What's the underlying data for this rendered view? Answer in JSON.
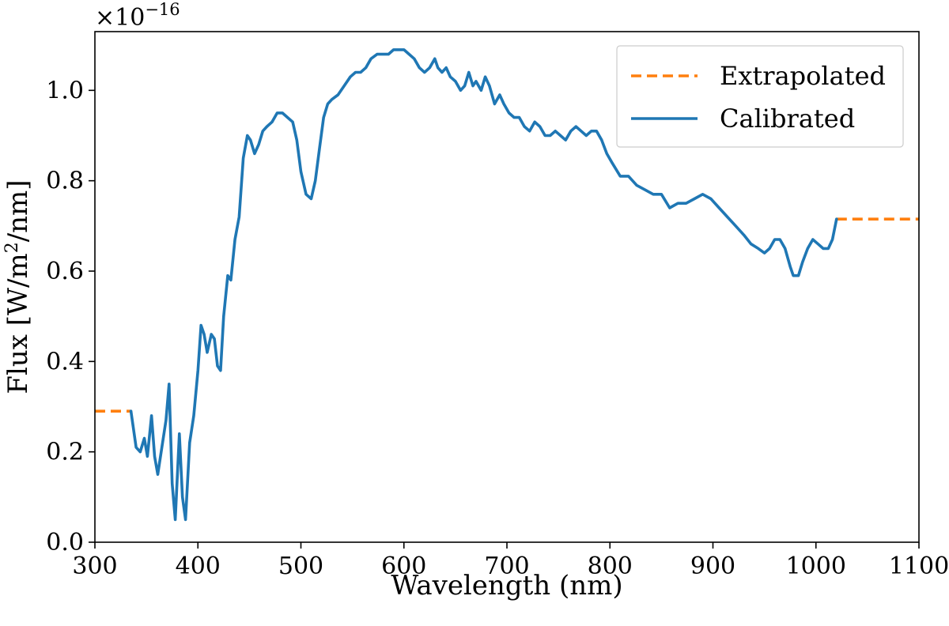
{
  "chart_data": {
    "type": "line",
    "xlabel": "Wavelength (nm)",
    "ylabel_prefix": "Flux [W/m",
    "ylabel_sup": "2",
    "ylabel_suffix": "/nm]",
    "offset_base": "×10",
    "offset_exp": "−16",
    "xlim": [
      300,
      1100
    ],
    "ylim": [
      0,
      1.13
    ],
    "xticks": [
      300,
      400,
      500,
      600,
      700,
      800,
      900,
      1000,
      1100
    ],
    "yticks": [
      0.0,
      0.2,
      0.4,
      0.6,
      0.8,
      1.0
    ],
    "ytick_labels": [
      "0.0",
      "0.2",
      "0.4",
      "0.6",
      "0.8",
      "1.0"
    ],
    "grid": false,
    "legend_position": "top-right",
    "series": [
      {
        "name": "Extrapolated",
        "color": "#ff7f0e",
        "style": "dashed",
        "segments": [
          {
            "x": [
              300,
              335
            ],
            "y": [
              0.29,
              0.29
            ]
          },
          {
            "x": [
              1020,
              1100
            ],
            "y": [
              0.715,
              0.715
            ]
          }
        ]
      },
      {
        "name": "Calibrated",
        "color": "#1f77b4",
        "style": "solid",
        "x": [
          335,
          340,
          344,
          348,
          351,
          355,
          358,
          361,
          365,
          369,
          372,
          375,
          378,
          382,
          385,
          388,
          392,
          396,
          400,
          403,
          406,
          409,
          413,
          416,
          419,
          422,
          425,
          429,
          432,
          436,
          440,
          444,
          448,
          451,
          455,
          459,
          463,
          467,
          472,
          477,
          482,
          487,
          492,
          496,
          500,
          505,
          510,
          514,
          518,
          522,
          526,
          530,
          536,
          542,
          548,
          553,
          558,
          563,
          568,
          574,
          580,
          585,
          590,
          596,
          600,
          605,
          610,
          615,
          620,
          625,
          630,
          633,
          637,
          641,
          645,
          650,
          655,
          659,
          663,
          667,
          670,
          675,
          679,
          683,
          688,
          693,
          697,
          702,
          707,
          712,
          717,
          722,
          727,
          732,
          737,
          742,
          747,
          752,
          757,
          762,
          767,
          772,
          777,
          782,
          787,
          792,
          797,
          802,
          810,
          818,
          826,
          834,
          842,
          850,
          858,
          866,
          874,
          882,
          890,
          898,
          906,
          914,
          922,
          930,
          937,
          944,
          950,
          955,
          960,
          965,
          970,
          975,
          978,
          983,
          987,
          992,
          997,
          1002,
          1007,
          1012,
          1016,
          1020
        ],
        "y": [
          0.29,
          0.21,
          0.2,
          0.23,
          0.19,
          0.28,
          0.19,
          0.15,
          0.21,
          0.27,
          0.35,
          0.13,
          0.05,
          0.24,
          0.1,
          0.05,
          0.22,
          0.28,
          0.38,
          0.48,
          0.46,
          0.42,
          0.46,
          0.45,
          0.39,
          0.38,
          0.5,
          0.59,
          0.58,
          0.67,
          0.72,
          0.85,
          0.9,
          0.89,
          0.86,
          0.88,
          0.91,
          0.92,
          0.93,
          0.95,
          0.95,
          0.94,
          0.93,
          0.89,
          0.82,
          0.77,
          0.76,
          0.8,
          0.87,
          0.94,
          0.97,
          0.98,
          0.99,
          1.01,
          1.03,
          1.04,
          1.04,
          1.05,
          1.07,
          1.08,
          1.08,
          1.08,
          1.09,
          1.09,
          1.09,
          1.08,
          1.07,
          1.05,
          1.04,
          1.05,
          1.07,
          1.05,
          1.04,
          1.05,
          1.03,
          1.02,
          1.0,
          1.01,
          1.04,
          1.01,
          1.02,
          1.0,
          1.03,
          1.01,
          0.97,
          0.99,
          0.97,
          0.95,
          0.94,
          0.94,
          0.92,
          0.91,
          0.93,
          0.92,
          0.9,
          0.9,
          0.91,
          0.9,
          0.89,
          0.91,
          0.92,
          0.91,
          0.9,
          0.91,
          0.91,
          0.89,
          0.86,
          0.84,
          0.81,
          0.81,
          0.79,
          0.78,
          0.77,
          0.77,
          0.74,
          0.75,
          0.75,
          0.76,
          0.77,
          0.76,
          0.74,
          0.72,
          0.7,
          0.68,
          0.66,
          0.65,
          0.64,
          0.65,
          0.67,
          0.67,
          0.65,
          0.61,
          0.59,
          0.59,
          0.62,
          0.65,
          0.67,
          0.66,
          0.65,
          0.65,
          0.67,
          0.715
        ]
      }
    ]
  }
}
